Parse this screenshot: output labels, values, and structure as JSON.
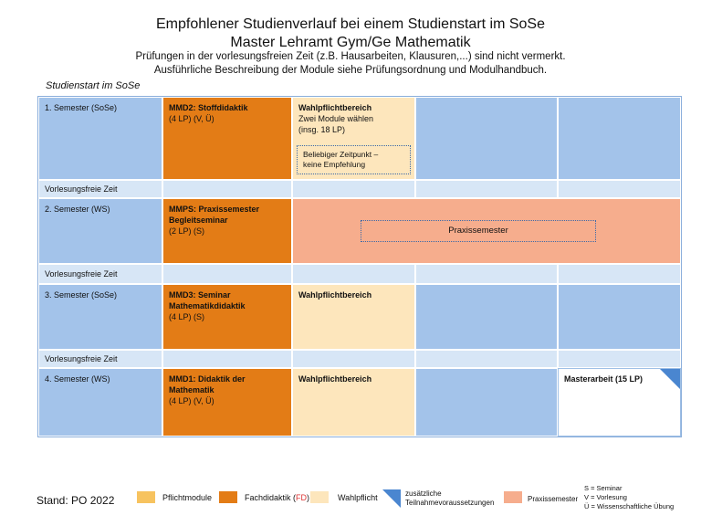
{
  "header": {
    "title1": "Empfohlener Studienverlauf bei einem Studienstart im SoSe",
    "title2": "Master Lehramt Gym/Ge Mathematik",
    "subtitle1": "Prüfungen in der vorlesungsfreien Zeit (z.B. Hausarbeiten, Klausuren,...) sind nicht vermerkt.",
    "subtitle2": "Ausführliche Beschreibung der Module siehe Prüfungsordnung und Modulhandbuch."
  },
  "studienstart": "Studienstart im SoSe",
  "rows": {
    "sem1": "1. Semester (SoSe)",
    "vfz1": "Vorlesungsfreie Zeit",
    "sem2": "2. Semester (WS)",
    "vfz2": "Vorlesungsfreie Zeit",
    "sem3": "3. Semester (SoSe)",
    "vfz3": "Vorlesungsfreie Zeit",
    "sem4": "4. Semester (WS)"
  },
  "cells": {
    "mmd2_title": "MMD2: Stoffdidaktik",
    "mmd2_info": "(4 LP) (V, Ü)",
    "wp1_title": "Wahlpflichtbereich",
    "wp1_line1": "Zwei Module wählen",
    "wp1_line2": "(insg. 18 LP)",
    "wp1_note_line1": "Beliebiger Zeitpunkt –",
    "wp1_note_line2": "keine Empfehlung",
    "mmps_title1": "MMPS: Praxissemester",
    "mmps_title2": "Begleitseminar",
    "mmps_info": "(2 LP) (S)",
    "praxissemester": "Praxissemester",
    "mmd3_title1": "MMD3: Seminar",
    "mmd3_title2": "Mathematikdidaktik",
    "mmd3_info": "(4 LP) (S)",
    "wp3_title": "Wahlpflichtbereich",
    "mmd1_title1": "MMD1: Didaktik der",
    "mmd1_title2": "Mathematik",
    "mmd1_info": "(4 LP) (V, Ü)",
    "wp4_title": "Wahlpflichtbereich",
    "masterarbeit": "Masterarbeit (15 LP)"
  },
  "legend": {
    "stand": "Stand: PO 2022",
    "pflicht": "Pflichtmodule",
    "fach_prefix": "Fachdidaktik (",
    "fach_fd": "FD",
    "fach_suffix": ")",
    "wahl": "Wahlpflicht",
    "zus1": "zusätzliche",
    "zus2": "Teilnahmevoraussetzungen",
    "praxis": "Praxissemester",
    "s": "S = Seminar",
    "v": "V = Vorlesung",
    "u": "Ü = Wissenschaftliche Übung"
  },
  "colors": {
    "pflicht": "#f7c35f",
    "fachdidaktik": "#e37c16",
    "wahlpflicht": "#fde6bc",
    "praxis": "#f6ad8d",
    "semester": "#a3c3ea",
    "vorlesungsfrei": "#d7e6f6",
    "marker": "#4a86d0"
  }
}
